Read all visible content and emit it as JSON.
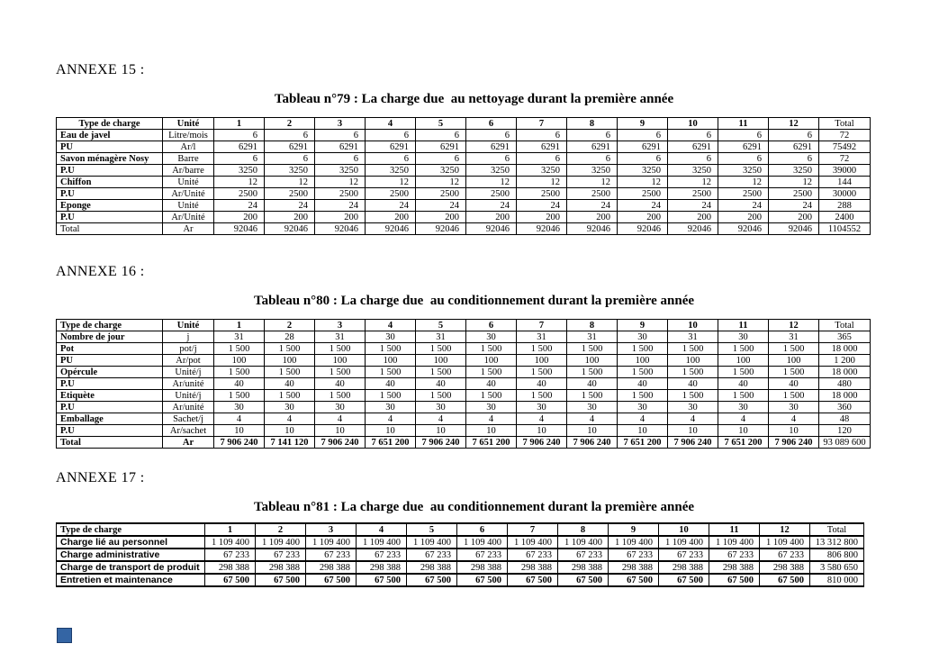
{
  "page": {
    "background": "#ffffff"
  },
  "marker": {
    "name": "blue-square",
    "color": "#3465a4"
  },
  "annexe15": {
    "heading": "ANNEXE 15 :"
  },
  "annexe16": {
    "heading": "ANNEXE 16 :"
  },
  "annexe17": {
    "heading": "ANNEXE 17 :"
  },
  "table79": {
    "title": "Tableau n°79 : La charge due  au nettoyage durant la première année",
    "headers": [
      "Type de charge",
      "Unité",
      "1",
      "2",
      "3",
      "4",
      "5",
      "6",
      "7",
      "8",
      "9",
      "10",
      "11",
      "12",
      "Total"
    ],
    "rows": [
      [
        "Eau de javel",
        "Litre/mois",
        "6",
        "6",
        "6",
        "6",
        "6",
        "6",
        "6",
        "6",
        "6",
        "6",
        "6",
        "6",
        "72"
      ],
      [
        "PU",
        "Ar/l",
        "6291",
        "6291",
        "6291",
        "6291",
        "6291",
        "6291",
        "6291",
        "6291",
        "6291",
        "6291",
        "6291",
        "6291",
        "75492"
      ],
      [
        "Savon ménagère Nosy",
        "Barre",
        "6",
        "6",
        "6",
        "6",
        "6",
        "6",
        "6",
        "6",
        "6",
        "6",
        "6",
        "6",
        "72"
      ],
      [
        "P.U",
        "Ar/barre",
        "3250",
        "3250",
        "3250",
        "3250",
        "3250",
        "3250",
        "3250",
        "3250",
        "3250",
        "3250",
        "3250",
        "3250",
        "39000"
      ],
      [
        "Chiffon",
        "Unité",
        "12",
        "12",
        "12",
        "12",
        "12",
        "12",
        "12",
        "12",
        "12",
        "12",
        "12",
        "12",
        "144"
      ],
      [
        "P.U",
        "Ar/Unité",
        "2500",
        "2500",
        "2500",
        "2500",
        "2500",
        "2500",
        "2500",
        "2500",
        "2500",
        "2500",
        "2500",
        "2500",
        "30000"
      ],
      [
        "Eponge",
        "Unité",
        "24",
        "24",
        "24",
        "24",
        "24",
        "24",
        "24",
        "24",
        "24",
        "24",
        "24",
        "24",
        "288"
      ],
      [
        "P.U",
        "Ar/Unité",
        "200",
        "200",
        "200",
        "200",
        "200",
        "200",
        "200",
        "200",
        "200",
        "200",
        "200",
        "200",
        "2400"
      ],
      [
        "Total",
        "Ar",
        "92046",
        "92046",
        "92046",
        "92046",
        "92046",
        "92046",
        "92046",
        "92046",
        "92046",
        "92046",
        "92046",
        "92046",
        "1104552"
      ]
    ]
  },
  "table80": {
    "title": "Tableau n°80 : La charge due  au conditionnement durant la première année",
    "headers": [
      "Type de charge",
      "Unité",
      "1",
      "2",
      "3",
      "4",
      "5",
      "6",
      "7",
      "8",
      "9",
      "10",
      "11",
      "12",
      "Total"
    ],
    "rows": [
      [
        "Nombre de jour",
        "j",
        "31",
        "28",
        "31",
        "30",
        "31",
        "30",
        "31",
        "31",
        "30",
        "31",
        "30",
        "31",
        "365"
      ],
      [
        "Pot",
        "pot/j",
        "1 500",
        "1 500",
        "1 500",
        "1 500",
        "1 500",
        "1 500",
        "1 500",
        "1 500",
        "1 500",
        "1 500",
        "1 500",
        "1 500",
        "18 000"
      ],
      [
        "PU",
        "Ar/pot",
        "100",
        "100",
        "100",
        "100",
        "100",
        "100",
        "100",
        "100",
        "100",
        "100",
        "100",
        "100",
        "1 200"
      ],
      [
        "Opércule",
        "Unité/j",
        "1 500",
        "1 500",
        "1 500",
        "1 500",
        "1 500",
        "1 500",
        "1 500",
        "1 500",
        "1 500",
        "1 500",
        "1 500",
        "1 500",
        "18 000"
      ],
      [
        "P.U",
        "Ar/unité",
        "40",
        "40",
        "40",
        "40",
        "40",
        "40",
        "40",
        "40",
        "40",
        "40",
        "40",
        "40",
        "480"
      ],
      [
        "Etiquète",
        "Unité/j",
        "1 500",
        "1 500",
        "1 500",
        "1 500",
        "1 500",
        "1 500",
        "1 500",
        "1 500",
        "1 500",
        "1 500",
        "1 500",
        "1 500",
        "18 000"
      ],
      [
        "P.U",
        "Ar/unité",
        "30",
        "30",
        "30",
        "30",
        "30",
        "30",
        "30",
        "30",
        "30",
        "30",
        "30",
        "30",
        "360"
      ],
      [
        "Emballage",
        "Sachet/j",
        "4",
        "4",
        "4",
        "4",
        "4",
        "4",
        "4",
        "4",
        "4",
        "4",
        "4",
        "4",
        "48"
      ],
      [
        "P.U",
        "Ar/sachet",
        "10",
        "10",
        "10",
        "10",
        "10",
        "10",
        "10",
        "10",
        "10",
        "10",
        "10",
        "10",
        "120"
      ],
      [
        "Total",
        "Ar",
        "7 906 240",
        "7 141 120",
        "7 906 240",
        "7 651 200",
        "7 906 240",
        "7 651 200",
        "7 906 240",
        "7 906 240",
        "7 651 200",
        "7 906 240",
        "7 651 200",
        "7 906 240",
        "93 089 600"
      ]
    ]
  },
  "table81": {
    "title": "Tableau n°81 : La charge due  au conditionnement durant la première année",
    "headers": [
      "Type de charge",
      "1",
      "2",
      "3",
      "4",
      "5",
      "6",
      "7",
      "8",
      "9",
      "10",
      "11",
      "12",
      "Total"
    ],
    "rows": [
      [
        "Charge lié au personnel",
        "1 109 400",
        "1 109 400",
        "1 109 400",
        "1 109 400",
        "1 109 400",
        "1 109 400",
        "1 109 400",
        "1 109 400",
        "1 109 400",
        "1 109 400",
        "1 109 400",
        "1 109 400",
        "13 312 800"
      ],
      [
        "Charge administrative",
        "67 233",
        "67 233",
        "67 233",
        "67 233",
        "67 233",
        "67 233",
        "67 233",
        "67 233",
        "67 233",
        "67 233",
        "67 233",
        "67 233",
        "806 800"
      ],
      [
        "Charge de transport de produit",
        "298 388",
        "298 388",
        "298 388",
        "298 388",
        "298 388",
        "298 388",
        "298 388",
        "298 388",
        "298 388",
        "298 388",
        "298 388",
        "298 388",
        "3 580 650"
      ],
      [
        "Entretien et maintenance",
        "67 500",
        "67 500",
        "67 500",
        "67 500",
        "67 500",
        "67 500",
        "67 500",
        "67 500",
        "67 500",
        "67 500",
        "67 500",
        "67 500",
        "810 000"
      ]
    ]
  }
}
